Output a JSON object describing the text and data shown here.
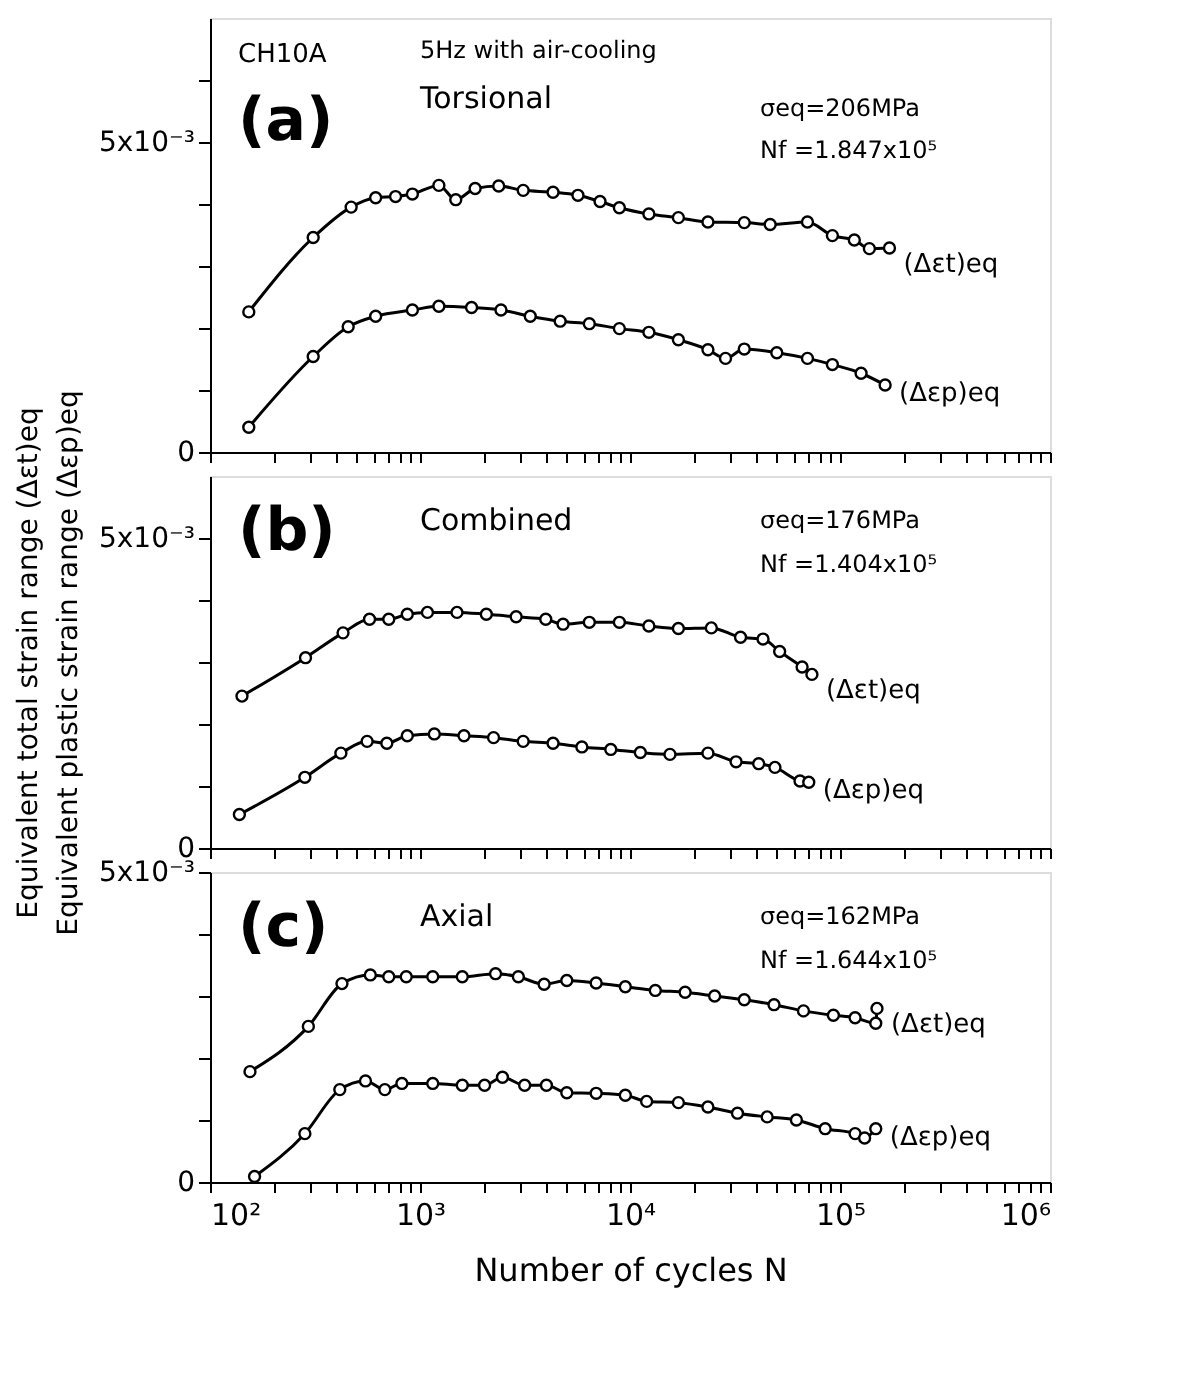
{
  "chart_data": [
    {
      "type": "line",
      "xlim": [
        100,
        1000000
      ],
      "ylim": [
        0,
        0.007
      ],
      "log": "x",
      "grid": false,
      "marker": "circle",
      "line_style": "solid",
      "tick_labels": "y",
      "xticks": [
        {
          "value": 100,
          "label": null
        },
        {
          "value": 200,
          "label": null
        },
        {
          "value": 300,
          "label": null
        },
        {
          "value": 400,
          "label": null
        },
        {
          "value": 500,
          "label": null
        },
        {
          "value": 600,
          "label": null
        },
        {
          "value": 700,
          "label": null
        },
        {
          "value": 800,
          "label": null
        },
        {
          "value": 900,
          "label": null
        },
        {
          "value": 1000,
          "label": null
        },
        {
          "value": 2000,
          "label": null
        },
        {
          "value": 3000,
          "label": null
        },
        {
          "value": 4000,
          "label": null
        },
        {
          "value": 5000,
          "label": null
        },
        {
          "value": 6000,
          "label": null
        },
        {
          "value": 7000,
          "label": null
        },
        {
          "value": 8000,
          "label": null
        },
        {
          "value": 9000,
          "label": null
        },
        {
          "value": 10000,
          "label": null
        },
        {
          "value": 20000,
          "label": null
        },
        {
          "value": 30000,
          "label": null
        },
        {
          "value": 40000,
          "label": null
        },
        {
          "value": 50000,
          "label": null
        },
        {
          "value": 60000,
          "label": null
        },
        {
          "value": 70000,
          "label": null
        },
        {
          "value": 80000,
          "label": null
        },
        {
          "value": 90000,
          "label": null
        },
        {
          "value": 100000,
          "label": null
        },
        {
          "value": 200000,
          "label": null
        },
        {
          "value": 300000,
          "label": null
        },
        {
          "value": 400000,
          "label": null
        },
        {
          "value": 500000,
          "label": null
        },
        {
          "value": 600000,
          "label": null
        },
        {
          "value": 700000,
          "label": null
        },
        {
          "value": 800000,
          "label": null
        },
        {
          "value": 900000,
          "label": null
        },
        {
          "value": 1000000,
          "label": null
        }
      ],
      "yticks": [
        0,
        {
          "value": 0.001,
          "label": null
        },
        {
          "value": 0.002,
          "label": null
        },
        {
          "value": 0.003,
          "label": null
        },
        {
          "value": 0.004,
          "label": null
        },
        {
          "value": 0.005,
          "label": "5x10⁻³"
        },
        {
          "value": 0.006,
          "label": null
        }
      ],
      "annotations": [
        "CH10A",
        "5Hz with air-cooling",
        "(a)",
        "Torsional",
        "σeq=206MPa",
        "Nf =1.847x10⁵"
      ],
      "series": [
        {
          "name": "(Δεt)eq",
          "color": "#000000",
          "x": [
            153,
            310,
            470,
            615,
            765,
            920,
            1230,
            1480,
            1830,
            2370,
            3100,
            4300,
            5650,
            7200,
            8900,
            12300,
            17000,
            23500,
            35000,
            46500,
            70000,
            92000,
            117000,
            138000,
            172000
          ],
          "values": [
            0.00226,
            0.00346,
            0.00395,
            0.0041,
            0.00412,
            0.00416,
            0.0043,
            0.00407,
            0.00425,
            0.00429,
            0.00422,
            0.00419,
            0.00414,
            0.00404,
            0.00394,
            0.00384,
            0.00378,
            0.00371,
            0.0037,
            0.00367,
            0.00371,
            0.00349,
            0.00342,
            0.00328,
            0.00329
          ]
        },
        {
          "name": "(Δεp)eq",
          "color": "#000000",
          "x": [
            153,
            310,
            455,
            615,
            920,
            1230,
            1760,
            2430,
            3350,
            4650,
            6400,
            8900,
            12300,
            17000,
            23500,
            28500,
            35000,
            50000,
            70000,
            92000,
            126000,
            164000
          ],
          "values": [
            0.0004,
            0.00154,
            0.00202,
            0.00219,
            0.00229,
            0.00235,
            0.00233,
            0.00229,
            0.00219,
            0.00211,
            0.00207,
            0.00199,
            0.00193,
            0.00181,
            0.00165,
            0.00151,
            0.00166,
            0.0016,
            0.00151,
            0.00141,
            0.00127,
            0.00108
          ]
        }
      ]
    },
    {
      "type": "line",
      "xlim": [
        100,
        1000000
      ],
      "ylim": [
        0,
        0.006
      ],
      "log": "x",
      "grid": false,
      "marker": "circle",
      "line_style": "solid",
      "tick_labels": "y",
      "ylabel": "Equivalent  total  strain  range (Δεt)eq\nEquivalent plastic strain range (Δεp)eq",
      "xticks": [
        {
          "value": 100,
          "label": null
        },
        {
          "value": 200,
          "label": null
        },
        {
          "value": 300,
          "label": null
        },
        {
          "value": 400,
          "label": null
        },
        {
          "value": 500,
          "label": null
        },
        {
          "value": 600,
          "label": null
        },
        {
          "value": 700,
          "label": null
        },
        {
          "value": 800,
          "label": null
        },
        {
          "value": 900,
          "label": null
        },
        {
          "value": 1000,
          "label": null
        },
        {
          "value": 2000,
          "label": null
        },
        {
          "value": 3000,
          "label": null
        },
        {
          "value": 4000,
          "label": null
        },
        {
          "value": 5000,
          "label": null
        },
        {
          "value": 6000,
          "label": null
        },
        {
          "value": 7000,
          "label": null
        },
        {
          "value": 8000,
          "label": null
        },
        {
          "value": 9000,
          "label": null
        },
        {
          "value": 10000,
          "label": null
        },
        {
          "value": 20000,
          "label": null
        },
        {
          "value": 30000,
          "label": null
        },
        {
          "value": 40000,
          "label": null
        },
        {
          "value": 50000,
          "label": null
        },
        {
          "value": 60000,
          "label": null
        },
        {
          "value": 70000,
          "label": null
        },
        {
          "value": 80000,
          "label": null
        },
        {
          "value": 90000,
          "label": null
        },
        {
          "value": 100000,
          "label": null
        },
        {
          "value": 200000,
          "label": null
        },
        {
          "value": 300000,
          "label": null
        },
        {
          "value": 400000,
          "label": null
        },
        {
          "value": 500000,
          "label": null
        },
        {
          "value": 600000,
          "label": null
        },
        {
          "value": 700000,
          "label": null
        },
        {
          "value": 800000,
          "label": null
        },
        {
          "value": 900000,
          "label": null
        },
        {
          "value": 1000000,
          "label": null
        }
      ],
      "yticks": [
        0,
        {
          "value": 0.001,
          "label": null
        },
        {
          "value": 0.002,
          "label": null
        },
        {
          "value": 0.003,
          "label": null
        },
        {
          "value": 0.004,
          "label": null
        },
        {
          "value": 0.005,
          "label": "5x10⁻³"
        }
      ],
      "annotations": [
        "(b)",
        "Combined",
        "σeq=176MPa",
        "Nf =1.404x10⁵"
      ],
      "series": [
        {
          "name": "(Δεt)eq",
          "color": "#000000",
          "x": [
            142,
            285,
            430,
            575,
            710,
            870,
            1085,
            1500,
            2070,
            2870,
            3970,
            4800,
            6400,
            8900,
            12300,
            17000,
            24400,
            33600,
            43000,
            51600,
            66000,
            73500
          ],
          "values": [
            0.00245,
            0.00307,
            0.00347,
            0.00369,
            0.00369,
            0.00377,
            0.0038,
            0.0038,
            0.00377,
            0.00373,
            0.00369,
            0.00361,
            0.00364,
            0.00364,
            0.00358,
            0.00354,
            0.00355,
            0.0034,
            0.00337,
            0.00317,
            0.00292,
            0.0028
          ]
        },
        {
          "name": "(Δεp)eq",
          "color": "#000000",
          "x": [
            138,
            283,
            420,
            560,
            695,
            870,
            1170,
            1620,
            2240,
            3100,
            4300,
            5900,
            8100,
            11200,
            15500,
            23500,
            32000,
            41000,
            49000,
            64500,
            71000
          ],
          "values": [
            0.00054,
            0.00114,
            0.00153,
            0.00172,
            0.00169,
            0.00181,
            0.00184,
            0.00181,
            0.00178,
            0.00172,
            0.00169,
            0.00163,
            0.00159,
            0.00154,
            0.00151,
            0.00153,
            0.00139,
            0.00136,
            0.0013,
            0.00108,
            0.00106
          ]
        }
      ]
    },
    {
      "type": "line",
      "xlim": [
        100,
        1000000
      ],
      "ylim": [
        0,
        0.005
      ],
      "log": "x",
      "grid": false,
      "marker": "circle",
      "line_style": "solid",
      "xlabel": "Number  of  cycles  N",
      "xticks": [
        {
          "value": 100,
          "label": "10²"
        },
        {
          "value": 200,
          "label": null
        },
        {
          "value": 300,
          "label": null
        },
        {
          "value": 400,
          "label": null
        },
        {
          "value": 500,
          "label": null
        },
        {
          "value": 600,
          "label": null
        },
        {
          "value": 700,
          "label": null
        },
        {
          "value": 800,
          "label": null
        },
        {
          "value": 900,
          "label": null
        },
        {
          "value": 1000,
          "label": "10³"
        },
        {
          "value": 2000,
          "label": null
        },
        {
          "value": 3000,
          "label": null
        },
        {
          "value": 4000,
          "label": null
        },
        {
          "value": 5000,
          "label": null
        },
        {
          "value": 6000,
          "label": null
        },
        {
          "value": 7000,
          "label": null
        },
        {
          "value": 8000,
          "label": null
        },
        {
          "value": 9000,
          "label": null
        },
        {
          "value": 10000,
          "label": "10⁴"
        },
        {
          "value": 20000,
          "label": null
        },
        {
          "value": 30000,
          "label": null
        },
        {
          "value": 40000,
          "label": null
        },
        {
          "value": 50000,
          "label": null
        },
        {
          "value": 60000,
          "label": null
        },
        {
          "value": 70000,
          "label": null
        },
        {
          "value": 80000,
          "label": null
        },
        {
          "value": 90000,
          "label": null
        },
        {
          "value": 100000,
          "label": "10⁵"
        },
        {
          "value": 200000,
          "label": null
        },
        {
          "value": 300000,
          "label": null
        },
        {
          "value": 400000,
          "label": null
        },
        {
          "value": 500000,
          "label": null
        },
        {
          "value": 600000,
          "label": null
        },
        {
          "value": 700000,
          "label": null
        },
        {
          "value": 800000,
          "label": null
        },
        {
          "value": 900000,
          "label": null
        },
        {
          "value": 1000000,
          "label": "10⁶"
        }
      ],
      "yticks": [
        0,
        {
          "value": 0.001,
          "label": null
        },
        {
          "value": 0.002,
          "label": null
        },
        {
          "value": 0.003,
          "label": null
        },
        {
          "value": 0.004,
          "label": null
        },
        {
          "value": 0.005,
          "label": "5x10⁻³"
        }
      ],
      "annotations": [
        "(c)",
        "Axial",
        "σeq=162MPa",
        "Nf =1.644x10⁵"
      ],
      "series": [
        {
          "name": "(Δεt)eq",
          "color": "#000000",
          "x": [
            155,
            294,
            425,
            580,
            710,
            860,
            1150,
            1590,
            2290,
            2940,
            3900,
            5000,
            6900,
            9500,
            13200,
            18300,
            25300,
            35000,
            48500,
            67000,
            93000,
            118000,
            148000,
            150000
          ],
          "values": [
            0.00178,
            0.00251,
            0.0032,
            0.00334,
            0.00331,
            0.00331,
            0.00331,
            0.00331,
            0.00336,
            0.00331,
            0.00319,
            0.00325,
            0.00321,
            0.00315,
            0.00309,
            0.00306,
            0.003,
            0.00294,
            0.00286,
            0.00276,
            0.00269,
            0.00265,
            0.00256,
            0.0028
          ]
        },
        {
          "name": "(Δεp)eq",
          "color": "#000000",
          "x": [
            163,
            283,
            415,
            550,
            680,
            820,
            1150,
            1590,
            2030,
            2470,
            3150,
            4000,
            5000,
            6900,
            9500,
            12000,
            17000,
            23500,
            32500,
            45000,
            62000,
            85000,
            118000,
            131000,
            148000
          ],
          "values": [
            9e-05,
            0.00078,
            0.00149,
            0.00163,
            0.00149,
            0.00159,
            0.00159,
            0.00156,
            0.00156,
            0.00169,
            0.00156,
            0.00156,
            0.00144,
            0.00143,
            0.0014,
            0.0013,
            0.00128,
            0.00121,
            0.00111,
            0.00105,
            0.001,
            0.00086,
            0.00078,
            0.00071,
            0.00086
          ]
        }
      ]
    }
  ]
}
